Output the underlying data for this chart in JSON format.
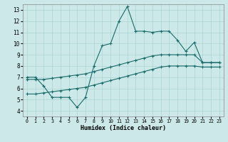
{
  "title": "",
  "xlabel": "Humidex (Indice chaleur)",
  "xlim": [
    -0.5,
    23.5
  ],
  "ylim": [
    3.5,
    13.5
  ],
  "xticks": [
    0,
    1,
    2,
    3,
    4,
    5,
    6,
    7,
    8,
    9,
    10,
    11,
    12,
    13,
    14,
    15,
    16,
    17,
    18,
    19,
    20,
    21,
    22,
    23
  ],
  "yticks": [
    4,
    5,
    6,
    7,
    8,
    9,
    10,
    11,
    12,
    13
  ],
  "bg_color": "#cce8e8",
  "line_color": "#1a6b6b",
  "line1_x": [
    0,
    1,
    2,
    3,
    4,
    5,
    6,
    7,
    8,
    9,
    10,
    11,
    12,
    13,
    14,
    15,
    16,
    17,
    18,
    19,
    20,
    21,
    22,
    23
  ],
  "line1_y": [
    7.0,
    7.0,
    6.2,
    5.2,
    5.2,
    5.2,
    4.3,
    5.2,
    8.0,
    9.8,
    10.0,
    12.0,
    13.3,
    11.1,
    11.1,
    11.0,
    11.1,
    11.1,
    10.3,
    9.3,
    10.1,
    8.3,
    8.3,
    8.3
  ],
  "line2_x": [
    0,
    1,
    2,
    3,
    4,
    5,
    6,
    7,
    8,
    9,
    10,
    11,
    12,
    13,
    14,
    15,
    16,
    17,
    18,
    19,
    20,
    21,
    22,
    23
  ],
  "line2_y": [
    6.8,
    6.8,
    6.8,
    6.9,
    7.0,
    7.1,
    7.2,
    7.3,
    7.5,
    7.7,
    7.9,
    8.1,
    8.3,
    8.5,
    8.7,
    8.9,
    9.0,
    9.0,
    9.0,
    9.0,
    9.0,
    8.3,
    8.3,
    8.3
  ],
  "line3_x": [
    0,
    1,
    2,
    3,
    4,
    5,
    6,
    7,
    8,
    9,
    10,
    11,
    12,
    13,
    14,
    15,
    16,
    17,
    18,
    19,
    20,
    21,
    22,
    23
  ],
  "line3_y": [
    5.5,
    5.5,
    5.6,
    5.7,
    5.8,
    5.9,
    6.0,
    6.1,
    6.3,
    6.5,
    6.7,
    6.9,
    7.1,
    7.3,
    7.5,
    7.7,
    7.9,
    8.0,
    8.0,
    8.0,
    8.0,
    7.9,
    7.9,
    7.9
  ],
  "grid_color": "#aad4d4",
  "spine_color": "#888888"
}
